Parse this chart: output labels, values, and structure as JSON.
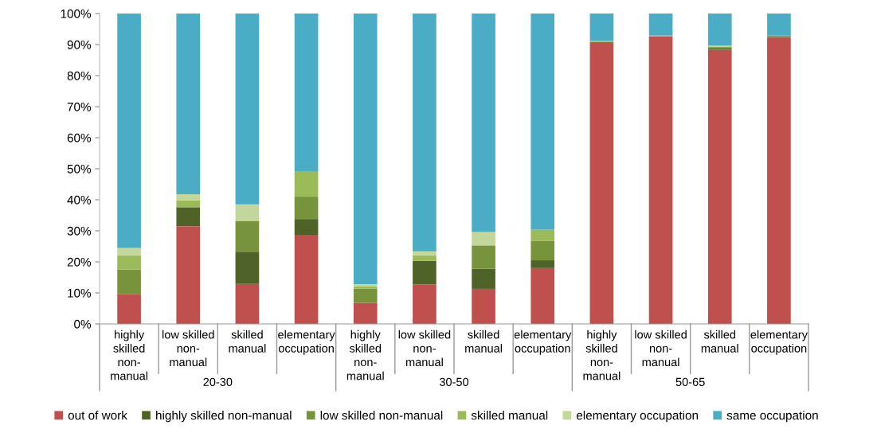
{
  "chart_data": {
    "type": "bar",
    "stacked": true,
    "categories": [
      "highly skilled non-manual",
      "low skilled non-manual",
      "skilled manual",
      "elementary occupation",
      "highly skilled non-manual",
      "low skilled non-manual",
      "skilled manual",
      "elementary occupation",
      "highly skilled non-manual",
      "low skilled non-manual",
      "skilled manual",
      "elementary occupation"
    ],
    "series": [
      {
        "name": "out of work",
        "color": "#c0504d",
        "values": [
          9.7,
          31.5,
          12.9,
          28.7,
          6.8,
          12.7,
          11.3,
          18.0,
          90.8,
          92.6,
          88.3,
          92.4
        ]
      },
      {
        "name": "highly skilled non-manual",
        "color": "#4f6228",
        "values": [
          0,
          6.1,
          10.4,
          5.1,
          0,
          7.6,
          6.5,
          2.5,
          0,
          0,
          0.4,
          0
        ]
      },
      {
        "name": "low skilled non-manual",
        "color": "#77933c",
        "values": [
          7.8,
          0,
          9.9,
          7.2,
          4.6,
          0,
          7.5,
          6.2,
          0,
          0,
          0.5,
          0.5
        ]
      },
      {
        "name": "skilled manual",
        "color": "#9bbb59",
        "values": [
          4.6,
          2.2,
          0,
          8.2,
          0.7,
          1.8,
          0,
          3.7,
          0.4,
          0.3,
          0,
          0
        ]
      },
      {
        "name": "elementary occupation",
        "color": "#c3d69b",
        "values": [
          2.4,
          2.0,
          5.3,
          0,
          0.7,
          1.3,
          4.3,
          0,
          0,
          0,
          0.5,
          0
        ]
      },
      {
        "name": "same occupation",
        "color": "#4bacc6",
        "values": [
          75.5,
          58.2,
          61.5,
          50.8,
          87.2,
          76.6,
          70.4,
          69.6,
          8.8,
          7.1,
          10.3,
          7.1
        ]
      }
    ],
    "ylim": [
      0,
      100
    ],
    "yticks": [
      {
        "value": 0,
        "label": "0%"
      },
      {
        "value": 10,
        "label": "10%"
      },
      {
        "value": 20,
        "label": "20%"
      },
      {
        "value": 30,
        "label": "30%"
      },
      {
        "value": 40,
        "label": "40%"
      },
      {
        "value": 50,
        "label": "50%"
      },
      {
        "value": 60,
        "label": "60%"
      },
      {
        "value": 70,
        "label": "70%"
      },
      {
        "value": 80,
        "label": "80%"
      },
      {
        "value": 90,
        "label": "90%"
      },
      {
        "value": 100,
        "label": "100%"
      }
    ],
    "annotations": [
      "20-30",
      "30-50",
      "50-65"
    ],
    "grid": false,
    "legend": "bottom"
  }
}
